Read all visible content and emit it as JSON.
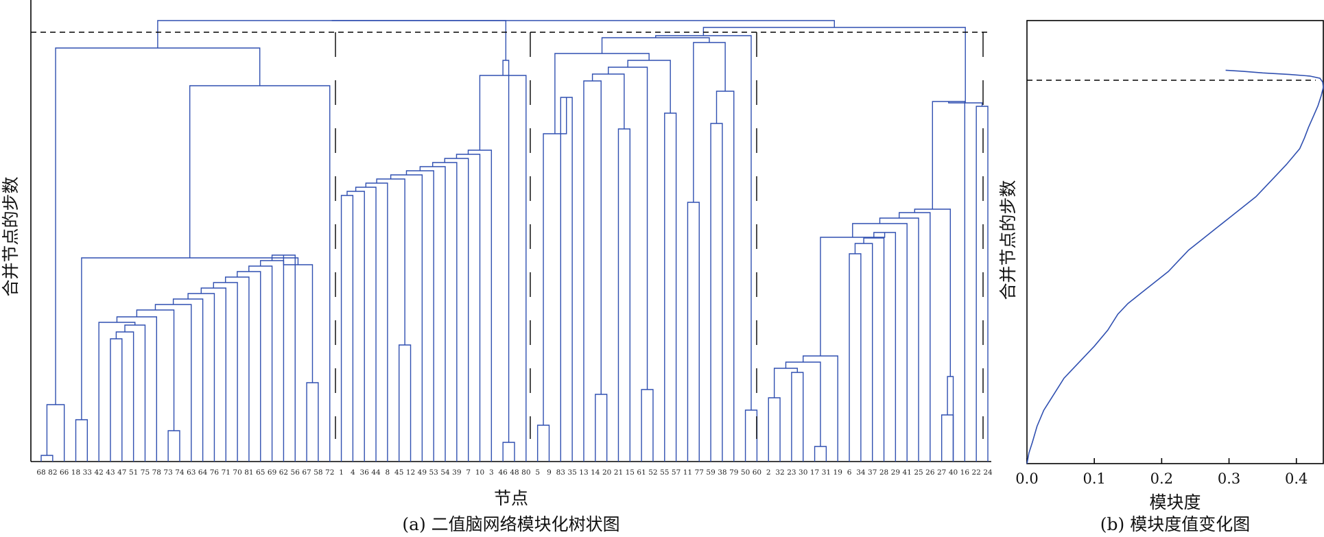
{
  "chart_data": [
    {
      "type": "dendrogram",
      "caption": "(a) 二值脑网络模块化树状图",
      "xlabel": "节点",
      "ylabel": "合并节点的步数",
      "leaves": [
        "68",
        "82",
        "66",
        "18",
        "33",
        "42",
        "43",
        "47",
        "51",
        "75",
        "78",
        "73",
        "74",
        "63",
        "64",
        "76",
        "71",
        "70",
        "81",
        "65",
        "69",
        "62",
        "56",
        "67",
        "58",
        "72",
        "1",
        "4",
        "36",
        "44",
        "8",
        "45",
        "12",
        "49",
        "53",
        "54",
        "39",
        "7",
        "10",
        "3",
        "46",
        "48",
        "80",
        "5",
        "9",
        "83",
        "35",
        "13",
        "14",
        "20",
        "21",
        "15",
        "61",
        "52",
        "55",
        "57",
        "11",
        "77",
        "59",
        "38",
        "79",
        "50",
        "60",
        "2",
        "32",
        "23",
        "30",
        "17",
        "31",
        "19",
        "6",
        "34",
        "37",
        "28",
        "29",
        "41",
        "25",
        "26",
        "27",
        "40",
        "16",
        "22",
        "24"
      ],
      "cut_lines": "dashed",
      "modules": 6
    },
    {
      "type": "line",
      "caption": "(b) 模块度值变化图",
      "xlabel": "模块度",
      "ylabel": "合并节点的步数",
      "xticks": [
        "0.0",
        "0.1",
        "0.2",
        "0.3",
        "0.4"
      ],
      "xlim": [
        0,
        0.44
      ],
      "ylim": [
        0,
        83
      ],
      "x": [
        0.0,
        0.003,
        0.008,
        0.015,
        0.025,
        0.04,
        0.055,
        0.07,
        0.085,
        0.1,
        0.12,
        0.135,
        0.15,
        0.17,
        0.19,
        0.21,
        0.225,
        0.24,
        0.26,
        0.28,
        0.3,
        0.32,
        0.34,
        0.355,
        0.37,
        0.385,
        0.395,
        0.405,
        0.412,
        0.418,
        0.425,
        0.432,
        0.437,
        0.44,
        0.439,
        0.435,
        0.42,
        0.39,
        0.35,
        0.32,
        0.295
      ],
      "y": [
        0,
        2,
        4,
        7,
        10,
        13,
        16,
        18,
        20,
        22,
        25,
        28,
        30,
        32,
        34,
        36,
        38,
        40,
        42,
        44,
        46,
        48,
        50,
        52,
        54,
        56,
        57.5,
        59,
        61,
        63,
        65,
        67,
        69,
        70.5,
        71.5,
        72.2,
        72.6,
        72.9,
        73.2,
        73.5,
        73.7
      ],
      "max_marker": "dashed"
    }
  ]
}
